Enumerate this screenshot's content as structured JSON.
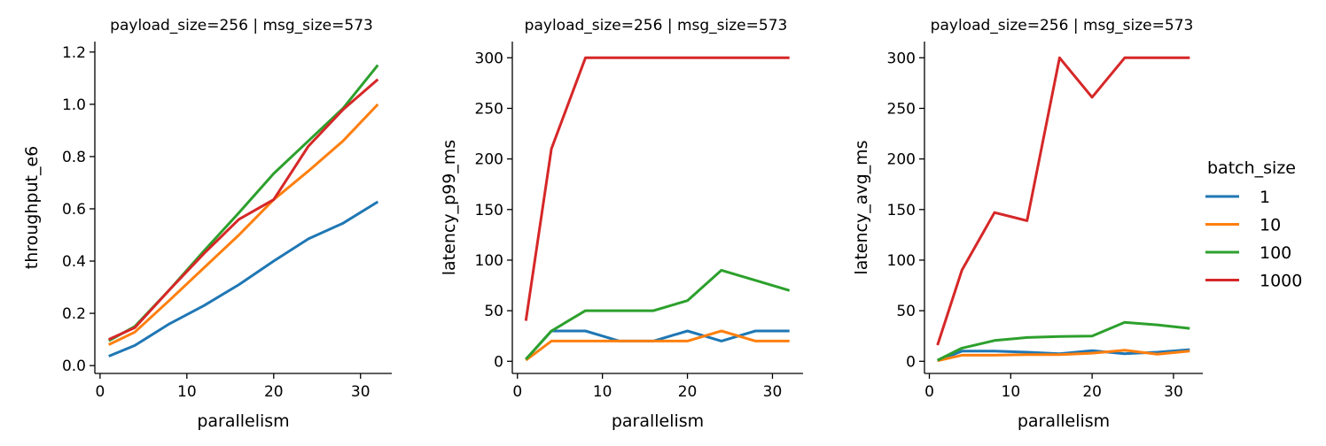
{
  "legend": {
    "title": "batch_size",
    "entries": [
      {
        "label": "1",
        "color": "#1f77b4"
      },
      {
        "label": "10",
        "color": "#ff7f0e"
      },
      {
        "label": "100",
        "color": "#2ca02c"
      },
      {
        "label": "1000",
        "color": "#d62728"
      }
    ]
  },
  "chart_data": [
    {
      "type": "line",
      "title": "payload_size=256 | msg_size=573",
      "xlabel": "parallelism",
      "ylabel": "throughput_e6",
      "xlim": [
        -0.6,
        33.6
      ],
      "ylim": [
        -0.03,
        1.24
      ],
      "xticks": [
        0,
        10,
        20,
        30
      ],
      "yticks": [
        0.0,
        0.2,
        0.4,
        0.6,
        0.8,
        1.0,
        1.2
      ],
      "ytick_labels": [
        "0.0",
        "0.2",
        "0.4",
        "0.6",
        "0.8",
        "1.0",
        "1.2"
      ],
      "x": [
        1,
        4,
        8,
        12,
        16,
        20,
        24,
        28,
        32
      ],
      "series": [
        {
          "name": "1",
          "values": [
            0.036,
            0.077,
            0.16,
            0.23,
            0.31,
            0.4,
            0.485,
            0.545,
            0.627
          ]
        },
        {
          "name": "10",
          "values": [
            0.08,
            0.128,
            0.25,
            0.375,
            0.5,
            0.635,
            0.745,
            0.86,
            1.0
          ]
        },
        {
          "name": "100",
          "values": [
            0.095,
            0.15,
            0.29,
            0.44,
            0.585,
            0.735,
            0.86,
            0.985,
            1.15
          ]
        },
        {
          "name": "1000",
          "values": [
            0.1,
            0.145,
            0.29,
            0.43,
            0.56,
            0.635,
            0.84,
            0.98,
            1.095
          ]
        }
      ]
    },
    {
      "type": "line",
      "title": "payload_size=256 | msg_size=573",
      "xlabel": "parallelism",
      "ylabel": "latency_p99_ms",
      "xlim": [
        -0.6,
        33.6
      ],
      "ylim": [
        -12,
        316
      ],
      "xticks": [
        0,
        10,
        20,
        30
      ],
      "yticks": [
        0,
        50,
        100,
        150,
        200,
        250,
        300
      ],
      "ytick_labels": [
        "0",
        "50",
        "100",
        "150",
        "200",
        "250",
        "300"
      ],
      "x": [
        1,
        4,
        8,
        12,
        16,
        20,
        24,
        28,
        32
      ],
      "series": [
        {
          "name": "1",
          "values": [
            2,
            30,
            30,
            20,
            20,
            30,
            20,
            30,
            30
          ]
        },
        {
          "name": "10",
          "values": [
            1,
            20,
            20,
            20,
            20,
            20,
            30,
            20,
            20
          ]
        },
        {
          "name": "100",
          "values": [
            2,
            30,
            50,
            50,
            50,
            60,
            90,
            80,
            70
          ]
        },
        {
          "name": "1000",
          "values": [
            40,
            210,
            300,
            300,
            300,
            300,
            300,
            300,
            300
          ]
        }
      ]
    },
    {
      "type": "line",
      "title": "payload_size=256 | msg_size=573",
      "xlabel": "parallelism",
      "ylabel": "latency_avg_ms",
      "xlim": [
        -0.6,
        33.6
      ],
      "ylim": [
        -12,
        316
      ],
      "xticks": [
        0,
        10,
        20,
        30
      ],
      "yticks": [
        0,
        50,
        100,
        150,
        200,
        250,
        300
      ],
      "ytick_labels": [
        "0",
        "50",
        "100",
        "150",
        "200",
        "250",
        "300"
      ],
      "x": [
        1,
        4,
        8,
        12,
        16,
        20,
        24,
        28,
        32
      ],
      "series": [
        {
          "name": "1",
          "values": [
            0.5,
            10,
            10,
            9,
            7.5,
            10.5,
            7.5,
            9,
            11.5
          ]
        },
        {
          "name": "10",
          "values": [
            0.5,
            6,
            6,
            6.5,
            6.5,
            8,
            11,
            7,
            10
          ]
        },
        {
          "name": "100",
          "values": [
            1,
            13,
            20.5,
            23.5,
            24.5,
            25,
            38.5,
            36,
            32.5
          ]
        },
        {
          "name": "1000",
          "values": [
            16,
            90,
            147,
            139,
            300,
            261,
            300,
            300,
            300
          ]
        }
      ]
    }
  ]
}
